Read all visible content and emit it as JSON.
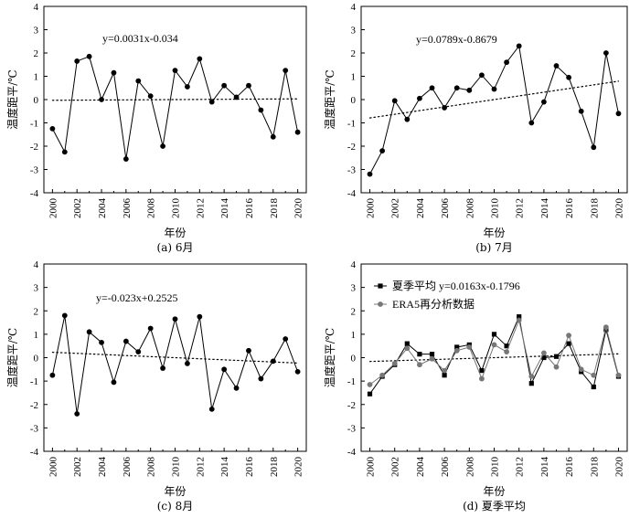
{
  "figure": {
    "ylabel": "温度距平/℃",
    "xlabel": "年份"
  },
  "chart_data": [
    {
      "type": "line",
      "caption": "(a) 6月",
      "equation": "y=0.0031x-0.034",
      "x": [
        2000,
        2001,
        2002,
        2003,
        2004,
        2005,
        2006,
        2007,
        2008,
        2009,
        2010,
        2011,
        2012,
        2013,
        2014,
        2015,
        2016,
        2017,
        2018,
        2019,
        2020
      ],
      "series": [
        {
          "values": [
            -1.25,
            -2.25,
            1.65,
            1.85,
            0.0,
            1.15,
            -2.55,
            0.8,
            0.15,
            -2.0,
            1.25,
            0.55,
            1.75,
            -0.1,
            0.6,
            0.1,
            0.6,
            -0.45,
            -1.6,
            1.25,
            -1.4
          ],
          "color": "#000000",
          "marker": "circle"
        }
      ],
      "trend": {
        "slope": 0.0031,
        "intercept": -0.034
      },
      "xticks": [
        2000,
        2002,
        2004,
        2006,
        2008,
        2010,
        2012,
        2014,
        2016,
        2018,
        2020
      ],
      "yticks": [
        -4,
        -3,
        -2,
        -1,
        0,
        1,
        2,
        3,
        4
      ],
      "xlim": [
        1999.3,
        2020.7
      ],
      "ylim": [
        -4,
        4
      ]
    },
    {
      "type": "line",
      "caption": "(b) 7月",
      "equation": "y=0.0789x-0.8679",
      "x": [
        2000,
        2001,
        2002,
        2003,
        2004,
        2005,
        2006,
        2007,
        2008,
        2009,
        2010,
        2011,
        2012,
        2013,
        2014,
        2015,
        2016,
        2017,
        2018,
        2019,
        2020
      ],
      "series": [
        {
          "values": [
            -3.2,
            -2.2,
            -0.05,
            -0.85,
            0.05,
            0.5,
            -0.35,
            0.5,
            0.4,
            1.05,
            0.45,
            1.6,
            2.3,
            -1.0,
            -0.1,
            1.45,
            0.95,
            -0.5,
            -2.05,
            2.0,
            -0.6
          ],
          "color": "#000000",
          "marker": "circle"
        }
      ],
      "trend": {
        "slope": 0.0789,
        "intercept": -0.8679
      },
      "xticks": [
        2000,
        2002,
        2004,
        2006,
        2008,
        2010,
        2012,
        2014,
        2016,
        2018,
        2020
      ],
      "yticks": [
        -4,
        -3,
        -2,
        -1,
        0,
        1,
        2,
        3,
        4
      ],
      "xlim": [
        1999.3,
        2020.7
      ],
      "ylim": [
        -4,
        4
      ]
    },
    {
      "type": "line",
      "caption": "(c) 8月",
      "equation": "y=-0.023x+0.2525",
      "x": [
        2000,
        2001,
        2002,
        2003,
        2004,
        2005,
        2006,
        2007,
        2008,
        2009,
        2010,
        2011,
        2012,
        2013,
        2014,
        2015,
        2016,
        2017,
        2018,
        2019,
        2020
      ],
      "series": [
        {
          "values": [
            -0.75,
            1.8,
            -2.4,
            1.1,
            0.65,
            -1.05,
            0.7,
            0.25,
            1.25,
            -0.45,
            1.65,
            -0.25,
            1.75,
            -2.2,
            -0.5,
            -1.3,
            0.3,
            -0.9,
            -0.15,
            0.8,
            -0.6
          ],
          "color": "#000000",
          "marker": "circle"
        }
      ],
      "trend": {
        "slope": -0.023,
        "intercept": 0.2525
      },
      "xticks": [
        2000,
        2002,
        2004,
        2006,
        2008,
        2010,
        2012,
        2014,
        2016,
        2018,
        2020
      ],
      "yticks": [
        -4,
        -3,
        -2,
        -1,
        0,
        1,
        2,
        3,
        4
      ],
      "xlim": [
        1999.3,
        2020.7
      ],
      "ylim": [
        -4,
        4
      ]
    },
    {
      "type": "line",
      "caption": "(d) 夏季平均",
      "equation": "y=0.0163x-0.1796",
      "legend_position": "top-left",
      "x": [
        2000,
        2001,
        2002,
        2003,
        2004,
        2005,
        2006,
        2007,
        2008,
        2009,
        2010,
        2011,
        2012,
        2013,
        2014,
        2015,
        2016,
        2017,
        2018,
        2019,
        2020
      ],
      "series": [
        {
          "name": "夏季平均",
          "values": [
            -1.55,
            -0.8,
            -0.3,
            0.6,
            0.15,
            0.15,
            -0.75,
            0.45,
            0.55,
            -0.55,
            1.0,
            0.5,
            1.75,
            -1.1,
            0.0,
            0.05,
            0.6,
            -0.6,
            -1.25,
            1.2,
            -0.8
          ],
          "color": "#000000",
          "marker": "square"
        },
        {
          "name": "ERA5再分析数据",
          "values": [
            -1.15,
            -0.75,
            -0.25,
            0.4,
            -0.3,
            -0.05,
            -0.55,
            0.3,
            0.45,
            -0.9,
            0.55,
            0.25,
            1.6,
            -0.8,
            0.2,
            -0.4,
            0.95,
            -0.5,
            -0.75,
            1.3,
            -0.75
          ],
          "color": "#777777",
          "marker": "circle"
        }
      ],
      "trend": {
        "slope": 0.0163,
        "intercept": -0.1796
      },
      "xticks": [
        2000,
        2002,
        2004,
        2006,
        2008,
        2010,
        2012,
        2014,
        2016,
        2018,
        2020
      ],
      "yticks": [
        -4,
        -3,
        -2,
        -1,
        0,
        1,
        2,
        3,
        4
      ],
      "xlim": [
        1999.3,
        2020.7
      ],
      "ylim": [
        -4,
        4
      ]
    }
  ]
}
